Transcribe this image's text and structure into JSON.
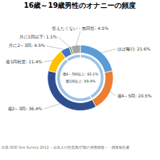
{
  "chart_data": {
    "type": "pie",
    "title": "16歳～19歳男性のオナニーの頻度",
    "categories": [
      "ほぼ毎日: 21.6%",
      "週4～5回: 20.5%",
      "週2～3回: 36.4%",
      "週1回程度: 11.4%",
      "月に2～3回: 4.5%",
      "月に1回以下: 1.1%",
      "答えたくない・無回答: 4.5%"
    ],
    "values": [
      21.6,
      20.5,
      36.4,
      11.4,
      4.5,
      1.1,
      4.5
    ],
    "colors": [
      "#5b9bd5",
      "#ed7d31",
      "#2e4f8f",
      "#ffc000",
      "#4472c4",
      "#70ad47",
      "#a5a5a5"
    ],
    "inner_ring": {
      "values": [
        42.1,
        47.8,
        10.1
      ],
      "colors": [
        "#9dc3e6",
        "#9dc3e6",
        "#9dc3e6"
      ]
    },
    "annotations": [
      "週4～5回以上: 42.1%",
      "週1回以上: 89.9%"
    ],
    "caption": "出典:SOD Sex Survey 2012 ～日本人の性意識/行動の実態調査～　調査報告書"
  }
}
